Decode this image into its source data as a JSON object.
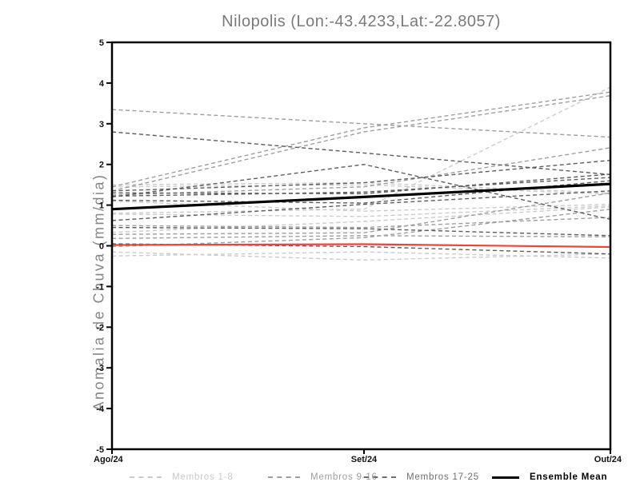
{
  "title": "Nilopolis (Lon:-43.4233,Lat:-22.8057)",
  "ylabel": "Anomalia de Chuva (mm/dia)",
  "legend": [
    {
      "label": "Membros 1-8",
      "color": "#c9c9c9",
      "style": "dashed"
    },
    {
      "label": "Membros 9-16",
      "color": "#9e9e9e",
      "style": "dashed"
    },
    {
      "label": "Membros 17-25",
      "color": "#6e6e6e",
      "style": "dashed"
    },
    {
      "label": "Ensemble Mean",
      "color": "#000000",
      "style": "solid"
    }
  ],
  "chart_data": {
    "type": "line",
    "title": "Nilopolis (Lon:-43.4233,Lat:-22.8057)",
    "xlabel": "",
    "ylabel": "Anomalia de Chuva (mm/dia)",
    "x": [
      "Ago/24",
      "Set/24",
      "Out/24"
    ],
    "ylim": [
      -5,
      5
    ],
    "ytick_interval": 1,
    "yticks": [
      5,
      4,
      3,
      2,
      1,
      0,
      -1,
      -2,
      -3,
      -4,
      -5
    ],
    "grid": false,
    "legend_position": "bottom",
    "groups": [
      {
        "name": "Membros 1-8",
        "color": "#cbcbcb",
        "style": "dashed",
        "members": [
          [
            0.8,
            0.9,
            3.9
          ],
          [
            1.5,
            1.55,
            1.3
          ],
          [
            1.45,
            1.5,
            1.27
          ],
          [
            1.1,
            0.85,
            1.02
          ],
          [
            0.78,
            0.72,
            0.98
          ],
          [
            0.33,
            0.6,
            0.95
          ],
          [
            -0.15,
            -0.35,
            -0.2
          ],
          [
            -0.25,
            -0.15,
            -0.3
          ]
        ]
      },
      {
        "name": "Membros 9-16",
        "color": "#9e9e9e",
        "style": "dashed",
        "members": [
          [
            1.45,
            2.9,
            3.78
          ],
          [
            1.35,
            2.8,
            3.69
          ],
          [
            3.35,
            3.0,
            2.67
          ],
          [
            1.25,
            1.45,
            2.41
          ],
          [
            0.28,
            0.32,
            1.3
          ],
          [
            0.5,
            0.45,
            0.7
          ],
          [
            0.18,
            0.25,
            0.22
          ],
          [
            -0.02,
            0.2,
            0.9
          ]
        ]
      },
      {
        "name": "Membros 17-25",
        "color": "#5c5c5c",
        "style": "dashed",
        "members": [
          [
            2.8,
            2.28,
            1.75
          ],
          [
            1.2,
            2.0,
            0.65
          ],
          [
            1.35,
            1.55,
            2.1
          ],
          [
            1.3,
            1.28,
            1.76
          ],
          [
            1.22,
            1.32,
            1.68
          ],
          [
            1.12,
            1.05,
            1.6
          ],
          [
            0.62,
            1.02,
            1.35
          ],
          [
            0.45,
            0.42,
            0.25
          ],
          [
            0.05,
            -0.02,
            -0.2
          ]
        ]
      }
    ],
    "mean": {
      "name": "Ensemble Mean",
      "color": "#000000",
      "values": [
        0.9,
        1.2,
        1.52
      ]
    },
    "reference": {
      "color": "#e8453c",
      "values": [
        0.02,
        0.04,
        -0.03
      ]
    }
  }
}
